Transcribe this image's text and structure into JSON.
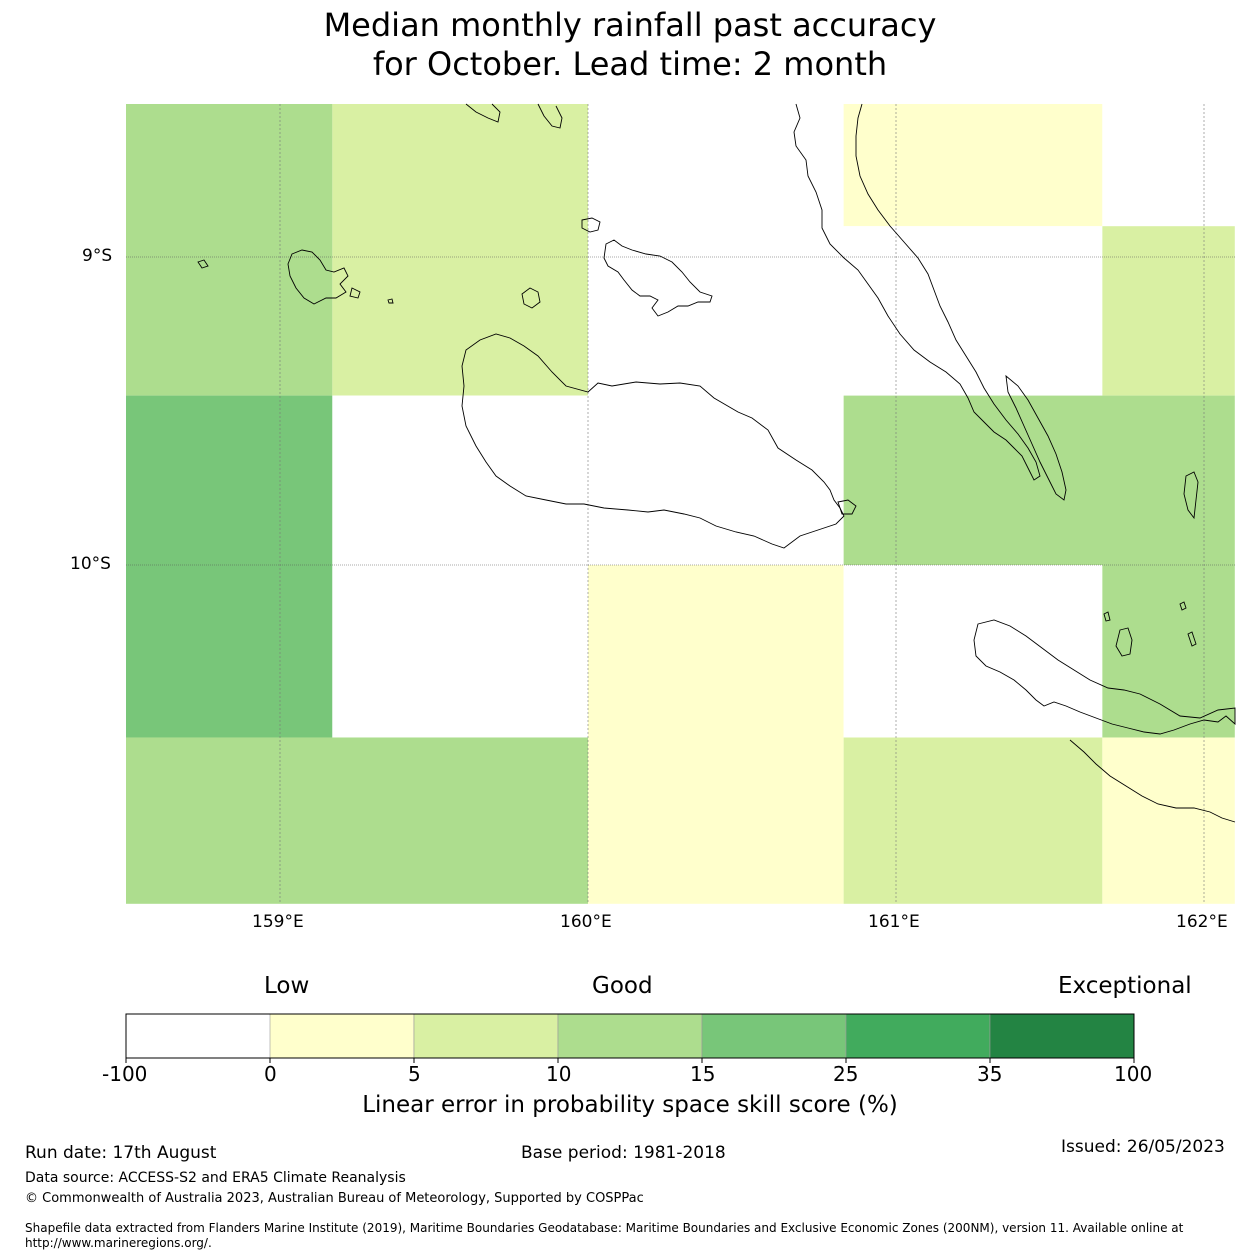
{
  "title": {
    "line1": "Median monthly rainfall past accuracy",
    "line2": "for October. Lead time: 2 month"
  },
  "map": {
    "lat_labels": [
      "9°S",
      "10°S"
    ],
    "lon_labels": [
      "159°E",
      "160°E",
      "161°E",
      "162°E"
    ],
    "cells": [
      {
        "lon": [
          158.5,
          159.17
        ],
        "lat": [
          -8.5,
          -9.45
        ],
        "value": 10
      },
      {
        "lon": [
          159.17,
          160.0
        ],
        "lat": [
          -8.5,
          -9.45
        ],
        "value": 5
      },
      {
        "lon": [
          160.0,
          160.83
        ],
        "lat": [
          -8.5,
          -9.45
        ],
        "value": -5
      },
      {
        "lon": [
          160.83,
          161.67
        ],
        "lat": [
          -8.5,
          -8.9
        ],
        "value": 0
      },
      {
        "lon": [
          161.67,
          162.1
        ],
        "lat": [
          -8.5,
          -8.9
        ],
        "value": -5
      },
      {
        "lon": [
          160.83,
          161.67
        ],
        "lat": [
          -8.9,
          -9.45
        ],
        "value": -5
      },
      {
        "lon": [
          161.67,
          162.1
        ],
        "lat": [
          -8.9,
          -9.45
        ],
        "value": 5
      },
      {
        "lon": [
          158.5,
          159.17
        ],
        "lat": [
          -9.45,
          -10.0
        ],
        "value": 15
      },
      {
        "lon": [
          159.17,
          160.0
        ],
        "lat": [
          -9.45,
          -10.0
        ],
        "value": -5
      },
      {
        "lon": [
          160.0,
          160.83
        ],
        "lat": [
          -9.45,
          -10.0
        ],
        "value": -5
      },
      {
        "lon": [
          160.83,
          162.1
        ],
        "lat": [
          -9.45,
          -10.0
        ],
        "value": 10
      },
      {
        "lon": [
          158.5,
          159.17
        ],
        "lat": [
          -10.0,
          -10.56
        ],
        "value": 15
      },
      {
        "lon": [
          159.17,
          160.0
        ],
        "lat": [
          -10.0,
          -10.56
        ],
        "value": -5
      },
      {
        "lon": [
          160.0,
          160.83
        ],
        "lat": [
          -10.0,
          -11.1
        ],
        "value": 0
      },
      {
        "lon": [
          160.83,
          161.67
        ],
        "lat": [
          -10.0,
          -10.56
        ],
        "value": -5
      },
      {
        "lon": [
          161.67,
          162.1
        ],
        "lat": [
          -10.0,
          -10.56
        ],
        "value": 10
      },
      {
        "lon": [
          158.5,
          160.0
        ],
        "lat": [
          -10.56,
          -11.1
        ],
        "value": 10
      },
      {
        "lon": [
          160.83,
          161.67
        ],
        "lat": [
          -10.56,
          -11.1
        ],
        "value": 5
      },
      {
        "lon": [
          161.67,
          162.1
        ],
        "lat": [
          -10.56,
          -11.1
        ],
        "value": 0
      }
    ]
  },
  "colorbar": {
    "headings": [
      "Low",
      "Good",
      "Exceptional"
    ],
    "ticks": [
      "-100",
      "0",
      "5",
      "10",
      "15",
      "25",
      "35",
      "100"
    ],
    "bins": [
      {
        "from": -100,
        "to": 0,
        "color": "#ffffff"
      },
      {
        "from": 0,
        "to": 5,
        "color": "#ffffcc"
      },
      {
        "from": 5,
        "to": 10,
        "color": "#d9f0a3"
      },
      {
        "from": 10,
        "to": 15,
        "color": "#addd8e"
      },
      {
        "from": 15,
        "to": 25,
        "color": "#78c679"
      },
      {
        "from": 25,
        "to": 35,
        "color": "#41ab5d"
      },
      {
        "from": 35,
        "to": 100,
        "color": "#238443"
      }
    ],
    "label": "Linear error in probability space skill score (%)"
  },
  "footer": {
    "run_date": "Run date: 17th August",
    "base_period": "Base period: 1981-2018",
    "issued": "Issued: 26/05/2023",
    "data_source": "Data source: ACCESS-S2 and ERA5 Climate Reanalysis",
    "copyright": "© Commonwealth of Australia 2023, Australian Bureau of Meteorology, Supported by COSPPac",
    "shapefile_line1": "Shapefile data extracted from Flanders Marine Institute (2019), Maritime Boundaries Geodatabase: Maritime Boundaries and Exclusive Economic Zones (200NM), version 11. Available online at",
    "shapefile_line2": "http://www.marineregions.org/."
  }
}
